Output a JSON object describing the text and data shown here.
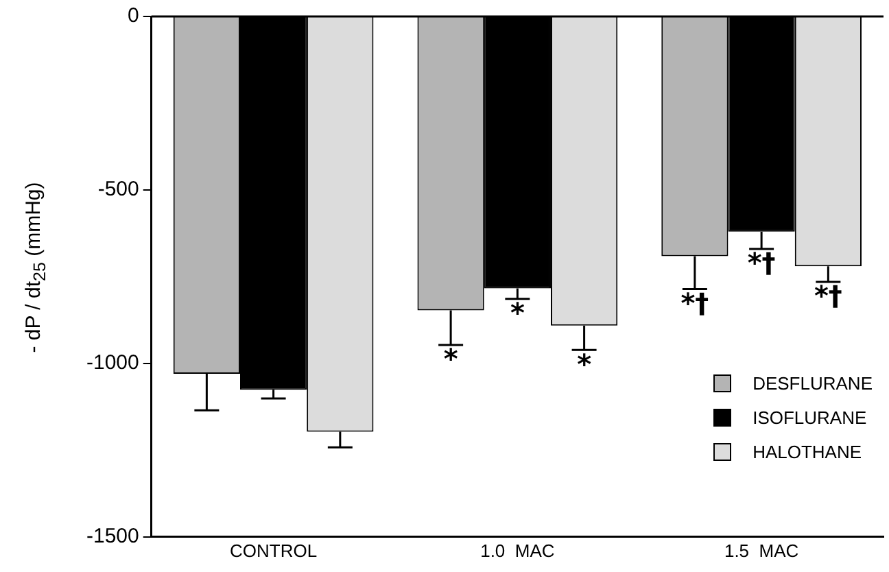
{
  "chart_data": {
    "type": "bar",
    "ylabel": "- dP / dt$_{25}$  (mmHg)",
    "categories": [
      "CONTROL",
      "1.0  MAC",
      "1.5  MAC"
    ],
    "series": [
      {
        "name": "DESFLURANE",
        "color": "#b4b4b4",
        "values": [
          -1030,
          -847,
          -691
        ],
        "errors": [
          [
            -1135,
            -1030
          ],
          [
            -947,
            -847
          ],
          [
            -786,
            -691
          ]
        ],
        "value_labels": [
          null,
          "*",
          "*†"
        ]
      },
      {
        "name": "ISOFLURANE",
        "color": "#000000",
        "values": [
          -1076,
          -784,
          -620
        ],
        "errors": [
          [
            -1101,
            -1076
          ],
          [
            -814,
            -784
          ],
          [
            -670,
            -620
          ]
        ],
        "value_labels": [
          null,
          "*",
          "*†"
        ]
      },
      {
        "name": "HALOTHANE",
        "color": "#dcdcdc",
        "values": [
          -1197,
          -891,
          -720
        ],
        "errors": [
          [
            -1242,
            -1197
          ],
          [
            -961,
            -891
          ],
          [
            -765,
            -720
          ]
        ],
        "value_labels": [
          null,
          "*",
          "*†"
        ]
      }
    ],
    "ylim": [
      -1500,
      0
    ],
    "yticks": [
      0,
      -500,
      -1000,
      -1500
    ],
    "grid": false,
    "legend": "bottom right"
  }
}
